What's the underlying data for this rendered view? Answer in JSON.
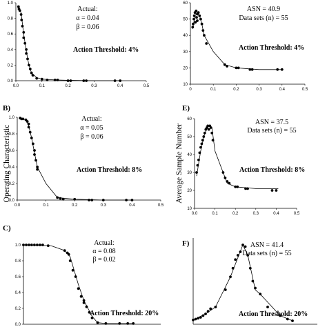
{
  "y_axis_labels": {
    "left": "Operating Characteristic",
    "right": "Average Sample Number"
  },
  "chart_data": [
    {
      "panel": "A",
      "panel_label": "",
      "type": "scatter",
      "xlim": [
        0,
        0.5
      ],
      "ylim": [
        0,
        1.0
      ],
      "xticks": [
        "0.0",
        "0.1",
        "0.2",
        "0.3",
        "0.4",
        "0.5"
      ],
      "yticks": [
        "0.0",
        "0.2",
        "0.4",
        "0.6",
        "0.8",
        "1.0"
      ],
      "annotations": [
        "Actual:",
        "α = 0.04",
        "β = 0.06"
      ],
      "threshold_label": "Action Threshold:  4%",
      "series": [
        {
          "points": [
            [
              0.01,
              0.95
            ],
            [
              0.012,
              0.92
            ],
            [
              0.015,
              0.9
            ],
            [
              0.02,
              0.85
            ],
            [
              0.022,
              0.78
            ],
            [
              0.025,
              0.7
            ],
            [
              0.03,
              0.62
            ],
            [
              0.03,
              0.55
            ],
            [
              0.035,
              0.48
            ],
            [
              0.04,
              0.4
            ],
            [
              0.04,
              0.35
            ],
            [
              0.045,
              0.28
            ],
            [
              0.05,
              0.2
            ],
            [
              0.055,
              0.15
            ],
            [
              0.06,
              0.1
            ],
            [
              0.065,
              0.07
            ],
            [
              0.08,
              0.03
            ],
            [
              0.1,
              0.02
            ],
            [
              0.12,
              0.01
            ],
            [
              0.15,
              0.01
            ],
            [
              0.16,
              0.01
            ],
            [
              0.2,
              0.0
            ],
            [
              0.21,
              0.0
            ],
            [
              0.26,
              0.0
            ],
            [
              0.27,
              0.0
            ],
            [
              0.38,
              0.0
            ],
            [
              0.4,
              0.0
            ]
          ],
          "curve": [
            [
              0.01,
              0.95
            ],
            [
              0.02,
              0.87
            ],
            [
              0.03,
              0.6
            ],
            [
              0.04,
              0.38
            ],
            [
              0.05,
              0.2
            ],
            [
              0.06,
              0.1
            ],
            [
              0.08,
              0.04
            ],
            [
              0.1,
              0.02
            ],
            [
              0.15,
              0.01
            ],
            [
              0.2,
              0.005
            ],
            [
              0.3,
              0.0
            ],
            [
              0.4,
              0.0
            ]
          ]
        }
      ]
    },
    {
      "panel": "B",
      "panel_label": "B)",
      "type": "scatter",
      "xlim": [
        0,
        0.5
      ],
      "ylim": [
        0,
        1.0
      ],
      "xticks": [
        "0.0",
        "0.1",
        "0.2",
        "0.3",
        "0.4",
        "0.5"
      ],
      "yticks": [
        "0.0",
        "0.2",
        "0.4",
        "0.6",
        "0.8",
        "1.0"
      ],
      "annotations": [
        "Actual:",
        "α = 0.05",
        "β = 0.06"
      ],
      "threshold_label": "Action Threshold:  8%",
      "series": [
        {
          "points": [
            [
              0.01,
              0.99
            ],
            [
              0.015,
              0.98
            ],
            [
              0.02,
              0.98
            ],
            [
              0.03,
              0.97
            ],
            [
              0.035,
              0.95
            ],
            [
              0.04,
              0.92
            ],
            [
              0.04,
              0.88
            ],
            [
              0.045,
              0.82
            ],
            [
              0.05,
              0.75
            ],
            [
              0.055,
              0.68
            ],
            [
              0.06,
              0.6
            ],
            [
              0.06,
              0.55
            ],
            [
              0.065,
              0.48
            ],
            [
              0.07,
              0.4
            ],
            [
              0.07,
              0.37
            ],
            [
              0.14,
              0.03
            ],
            [
              0.15,
              0.02
            ],
            [
              0.16,
              0.01
            ],
            [
              0.2,
              0.01
            ],
            [
              0.25,
              0.0
            ],
            [
              0.26,
              0.0
            ],
            [
              0.3,
              0.0
            ],
            [
              0.38,
              0.0
            ],
            [
              0.4,
              0.0
            ]
          ],
          "curve": [
            [
              0.01,
              0.99
            ],
            [
              0.03,
              0.97
            ],
            [
              0.04,
              0.9
            ],
            [
              0.05,
              0.75
            ],
            [
              0.06,
              0.57
            ],
            [
              0.07,
              0.4
            ],
            [
              0.1,
              0.2
            ],
            [
              0.14,
              0.03
            ],
            [
              0.2,
              0.01
            ],
            [
              0.3,
              0.0
            ],
            [
              0.4,
              0.0
            ]
          ]
        }
      ]
    },
    {
      "panel": "C",
      "panel_label": "C)",
      "type": "scatter",
      "xlim": [
        0,
        0.5
      ],
      "ylim": [
        0,
        1.0
      ],
      "xticks": [],
      "yticks": [
        "0.0",
        "0.2",
        "0.4",
        "0.6",
        "0.8",
        "1.0"
      ],
      "annotations": [
        "Actual:",
        "α = 0.08",
        "β = 0.02"
      ],
      "threshold_label": "Action Threshold:  20%",
      "series": [
        {
          "points": [
            [
              0.0,
              1.0
            ],
            [
              0.01,
              1.0
            ],
            [
              0.02,
              1.0
            ],
            [
              0.03,
              1.0
            ],
            [
              0.04,
              1.0
            ],
            [
              0.05,
              1.0
            ],
            [
              0.06,
              1.0
            ],
            [
              0.07,
              1.0
            ],
            [
              0.09,
              0.99
            ],
            [
              0.15,
              0.93
            ],
            [
              0.16,
              0.9
            ],
            [
              0.165,
              0.88
            ],
            [
              0.17,
              0.8
            ],
            [
              0.18,
              0.68
            ],
            [
              0.19,
              0.6
            ],
            [
              0.2,
              0.45
            ],
            [
              0.21,
              0.35
            ],
            [
              0.22,
              0.3
            ],
            [
              0.22,
              0.27
            ],
            [
              0.23,
              0.22
            ],
            [
              0.24,
              0.15
            ],
            [
              0.25,
              0.08
            ],
            [
              0.27,
              0.02
            ],
            [
              0.3,
              0.01
            ],
            [
              0.35,
              0.01
            ],
            [
              0.38,
              0.01
            ],
            [
              0.4,
              0.01
            ]
          ],
          "curve": [
            [
              0.0,
              1.0
            ],
            [
              0.1,
              0.99
            ],
            [
              0.15,
              0.93
            ],
            [
              0.17,
              0.85
            ],
            [
              0.2,
              0.5
            ],
            [
              0.22,
              0.3
            ],
            [
              0.25,
              0.1
            ],
            [
              0.27,
              0.02
            ],
            [
              0.3,
              0.01
            ],
            [
              0.4,
              0.01
            ]
          ]
        }
      ]
    },
    {
      "panel": "D",
      "panel_label": "",
      "type": "scatter",
      "xlim": [
        0,
        0.5
      ],
      "ylim": [
        10,
        60
      ],
      "xticks": [
        "0",
        "0.1",
        "0.2",
        "0.3",
        "0.4",
        "0.5"
      ],
      "yticks": [
        "10",
        "20",
        "30",
        "40",
        "50",
        "60"
      ],
      "annotations": [
        "ASN = 40.9",
        "Data sets (n) = 55"
      ],
      "threshold_label": "Action Threshold:  4%",
      "series": [
        {
          "points": [
            [
              0.01,
              45
            ],
            [
              0.012,
              47
            ],
            [
              0.015,
              50
            ],
            [
              0.017,
              52
            ],
            [
              0.02,
              54
            ],
            [
              0.022,
              48
            ],
            [
              0.025,
              55
            ],
            [
              0.027,
              51
            ],
            [
              0.03,
              53
            ],
            [
              0.03,
              49
            ],
            [
              0.035,
              54
            ],
            [
              0.04,
              52
            ],
            [
              0.045,
              50
            ],
            [
              0.05,
              47
            ],
            [
              0.055,
              43
            ],
            [
              0.06,
              40
            ],
            [
              0.07,
              35
            ],
            [
              0.15,
              22
            ],
            [
              0.16,
              21
            ],
            [
              0.2,
              20
            ],
            [
              0.21,
              20
            ],
            [
              0.26,
              19
            ],
            [
              0.27,
              19
            ],
            [
              0.38,
              19
            ],
            [
              0.4,
              19
            ]
          ],
          "curve": [
            [
              0.01,
              44
            ],
            [
              0.02,
              52
            ],
            [
              0.03,
              54
            ],
            [
              0.04,
              52
            ],
            [
              0.05,
              47
            ],
            [
              0.06,
              40
            ],
            [
              0.1,
              30
            ],
            [
              0.15,
              22
            ],
            [
              0.2,
              20
            ],
            [
              0.3,
              19
            ],
            [
              0.4,
              19
            ]
          ]
        }
      ]
    },
    {
      "panel": "E",
      "panel_label": "E)",
      "type": "scatter",
      "xlim": [
        0,
        0.5
      ],
      "ylim": [
        10,
        60
      ],
      "xticks": [
        "0.0",
        "0.1",
        "0.2",
        "0.3",
        "0.4",
        "0.5"
      ],
      "yticks": [
        "10",
        "20",
        "30",
        "40",
        "50",
        "60"
      ],
      "annotations": [
        "ASN = 37.5",
        "Data sets (n) = 55"
      ],
      "threshold_label": "Action Threshold:  8%",
      "series": [
        {
          "points": [
            [
              0.01,
              30
            ],
            [
              0.015,
              34
            ],
            [
              0.02,
              37
            ],
            [
              0.025,
              41
            ],
            [
              0.03,
              44
            ],
            [
              0.035,
              46
            ],
            [
              0.04,
              48
            ],
            [
              0.045,
              50
            ],
            [
              0.05,
              52
            ],
            [
              0.055,
              54
            ],
            [
              0.06,
              55
            ],
            [
              0.065,
              56
            ],
            [
              0.07,
              54
            ],
            [
              0.075,
              56
            ],
            [
              0.08,
              55
            ],
            [
              0.085,
              52
            ],
            [
              0.09,
              48
            ],
            [
              0.14,
              30
            ],
            [
              0.15,
              27
            ],
            [
              0.16,
              25
            ],
            [
              0.17,
              24
            ],
            [
              0.2,
              22
            ],
            [
              0.21,
              22
            ],
            [
              0.25,
              21
            ],
            [
              0.26,
              21
            ],
            [
              0.38,
              20
            ],
            [
              0.4,
              20
            ]
          ],
          "curve": [
            [
              0.01,
              28
            ],
            [
              0.03,
              42
            ],
            [
              0.05,
              52
            ],
            [
              0.07,
              56
            ],
            [
              0.085,
              55
            ],
            [
              0.1,
              42
            ],
            [
              0.14,
              30
            ],
            [
              0.16,
              24
            ],
            [
              0.2,
              22
            ],
            [
              0.3,
              21
            ],
            [
              0.41,
              21
            ]
          ]
        }
      ]
    },
    {
      "panel": "F",
      "panel_label": "F)",
      "type": "scatter",
      "xlim": [
        0,
        0.5
      ],
      "ylim": [
        20,
        120
      ],
      "xticks": [],
      "yticks": [],
      "annotations": [
        "ASN = 41.4",
        "Data sets (n) = 55"
      ],
      "threshold_label": "Action Threshold:  20%",
      "series": [
        {
          "points": [
            [
              0.0,
              25
            ],
            [
              0.01,
              26
            ],
            [
              0.02,
              27
            ],
            [
              0.03,
              28
            ],
            [
              0.04,
              30
            ],
            [
              0.05,
              32
            ],
            [
              0.06,
              35
            ],
            [
              0.07,
              38
            ],
            [
              0.09,
              40
            ],
            [
              0.13,
              60
            ],
            [
              0.15,
              75
            ],
            [
              0.16,
              85
            ],
            [
              0.17,
              95
            ],
            [
              0.18,
              100
            ],
            [
              0.19,
              104
            ],
            [
              0.2,
              112
            ],
            [
              0.21,
              110
            ],
            [
              0.22,
              100
            ],
            [
              0.23,
              85
            ],
            [
              0.24,
              70
            ],
            [
              0.25,
              62
            ],
            [
              0.27,
              55
            ],
            [
              0.3,
              40
            ],
            [
              0.35,
              30
            ],
            [
              0.38,
              26
            ],
            [
              0.4,
              24
            ]
          ],
          "curve": [
            [
              0.0,
              25
            ],
            [
              0.05,
              32
            ],
            [
              0.09,
              40
            ],
            [
              0.15,
              75
            ],
            [
              0.2,
              112
            ],
            [
              0.22,
              100
            ],
            [
              0.25,
              60
            ],
            [
              0.27,
              55
            ],
            [
              0.35,
              30
            ],
            [
              0.4,
              24
            ]
          ]
        }
      ]
    }
  ]
}
